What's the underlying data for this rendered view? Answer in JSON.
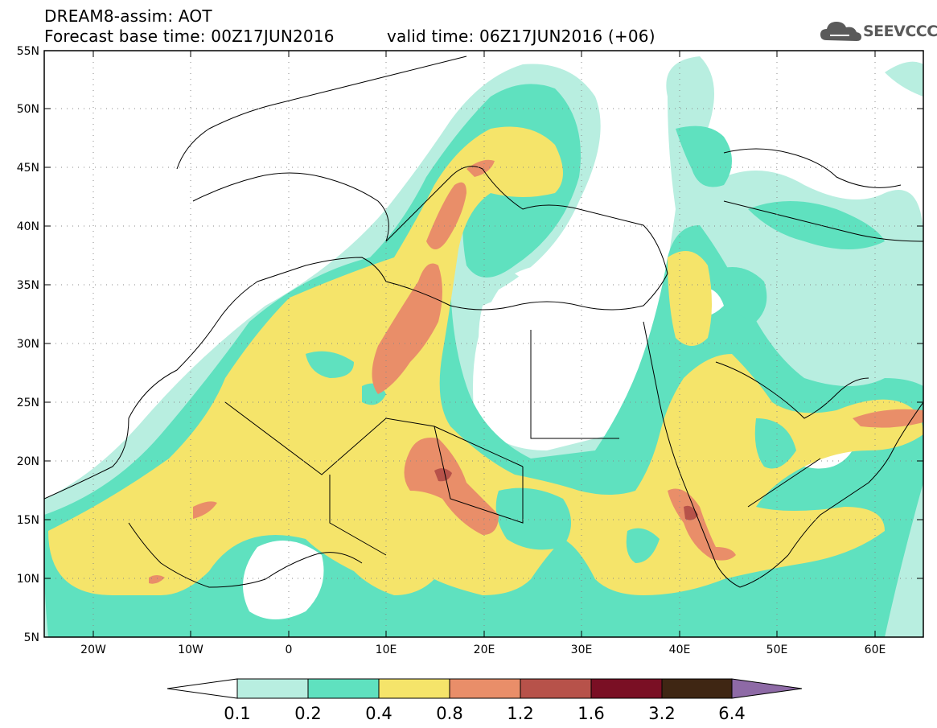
{
  "header": {
    "line1": "DREAM8-assim: AOT",
    "line2": "Forecast base time: 00Z17JUN2016",
    "line3": "valid time: 06Z17JUN2016 (+06)"
  },
  "logo": {
    "text": "SEEVCCC",
    "icon": "cloud-icon"
  },
  "map": {
    "lon_range": [
      -25,
      65
    ],
    "lat_range": [
      5,
      55
    ],
    "lat_ticks": [
      "5N",
      "10N",
      "15N",
      "20N",
      "25N",
      "30N",
      "35N",
      "40N",
      "45N",
      "50N",
      "55N"
    ],
    "lon_ticks": [
      "20W",
      "10W",
      "0",
      "10E",
      "20E",
      "30E",
      "40E",
      "50E",
      "60E"
    ],
    "grid": true
  },
  "colorbar": {
    "labels": [
      "0.1",
      "0.2",
      "0.4",
      "0.8",
      "1.2",
      "1.6",
      "3.2",
      "6.4"
    ],
    "colors": [
      "#ffffff",
      "#b8eee0",
      "#5fe1bf",
      "#f5e46a",
      "#e98e69",
      "#b7524a",
      "#7a0f24",
      "#3f2613",
      "#8e6aa6"
    ]
  }
}
